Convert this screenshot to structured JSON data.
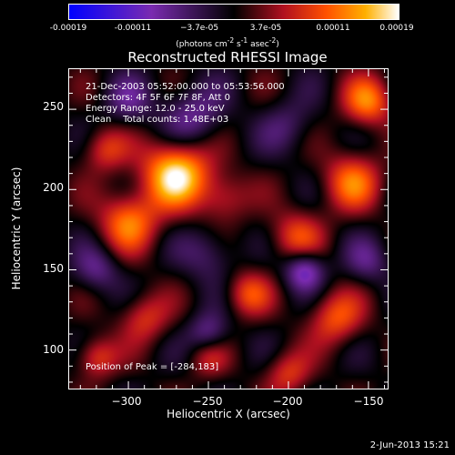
{
  "colorbar": {
    "ticks": [
      "-0.00019",
      "-0.00011",
      "−3.7e-05",
      "3.7e-05",
      "0.00011",
      "0.00019"
    ],
    "unit_prefix": "(photons cm",
    "unit_exp1": "-2",
    "unit_mid1": " s",
    "unit_exp2": "-1",
    "unit_mid2": " asec",
    "unit_exp3": "-2",
    "unit_suffix": ")"
  },
  "info": {
    "time_range": "21-Dec-2003 05:52:00.000 to 05:53:56.000",
    "detectors": "Detectors: 4F 5F 6F 7F 8F, Att 0",
    "energy_range": "Energy Range: 12.0 - 25.0 keV",
    "method": "Clean    Total counts: 1.48E+03",
    "peak": "Position of Peak = [-284,183]"
  },
  "footer": {
    "date": "2-Jun-2013 15:21"
  },
  "chart_data": {
    "type": "heatmap",
    "title": "Reconstructed RHESSI Image",
    "xlabel": "Heliocentric X (arcsec)",
    "ylabel": "Heliocentric Y (arcsec)",
    "xlim": [
      -337,
      -138
    ],
    "ylim": [
      76,
      275
    ],
    "x_ticks": [
      -300,
      -250,
      -200,
      -150
    ],
    "x_tick_labels": [
      "−300",
      "−250",
      "−200",
      "−150"
    ],
    "y_ticks": [
      100,
      150,
      200,
      250
    ],
    "y_tick_labels": [
      "100",
      "150",
      "200",
      "250"
    ],
    "colorbar_range": [
      -0.00019,
      0.00019
    ],
    "colormap": [
      "#0000ff",
      "#7a2bb0",
      "#000000",
      "#b01020",
      "#ff5000",
      "#ffb000",
      "#ffffff"
    ],
    "peak_position": [
      -284,
      183
    ],
    "sources": [
      {
        "x": -270,
        "y": 210,
        "amplitude": 0.00018,
        "sigma": 15
      },
      {
        "x": -300,
        "y": 180,
        "amplitude": 0.00012,
        "sigma": 13
      },
      {
        "x": -315,
        "y": 225,
        "amplitude": 8e-05,
        "sigma": 10
      },
      {
        "x": -240,
        "y": 195,
        "amplitude": 7e-05,
        "sigma": 11
      },
      {
        "x": -195,
        "y": 170,
        "amplitude": 9e-05,
        "sigma": 12
      },
      {
        "x": -160,
        "y": 205,
        "amplitude": 0.00011,
        "sigma": 13
      },
      {
        "x": -150,
        "y": 255,
        "amplitude": 0.00012,
        "sigma": 11
      },
      {
        "x": -170,
        "y": 120,
        "amplitude": 0.0001,
        "sigma": 12
      },
      {
        "x": -225,
        "y": 135,
        "amplitude": 9e-05,
        "sigma": 10
      },
      {
        "x": -290,
        "y": 120,
        "amplitude": 8e-05,
        "sigma": 11
      },
      {
        "x": -320,
        "y": 95,
        "amplitude": 9e-05,
        "sigma": 9
      },
      {
        "x": -200,
        "y": 85,
        "amplitude": 8e-05,
        "sigma": 10
      },
      {
        "x": -250,
        "y": 95,
        "amplitude": 6e-05,
        "sigma": 9
      },
      {
        "x": -260,
        "y": 245,
        "amplitude": -8e-05,
        "sigma": 14
      },
      {
        "x": -300,
        "y": 255,
        "amplitude": -6e-05,
        "sigma": 11
      },
      {
        "x": -190,
        "y": 150,
        "amplitude": -0.00012,
        "sigma": 9
      },
      {
        "x": -250,
        "y": 160,
        "amplitude": -6e-05,
        "sigma": 12
      },
      {
        "x": -320,
        "y": 150,
        "amplitude": -7e-05,
        "sigma": 10
      },
      {
        "x": -250,
        "y": 110,
        "amplitude": -8e-05,
        "sigma": 9
      },
      {
        "x": -150,
        "y": 155,
        "amplitude": -6e-05,
        "sigma": 10
      },
      {
        "x": -200,
        "y": 240,
        "amplitude": -5e-05,
        "sigma": 12
      }
    ]
  }
}
